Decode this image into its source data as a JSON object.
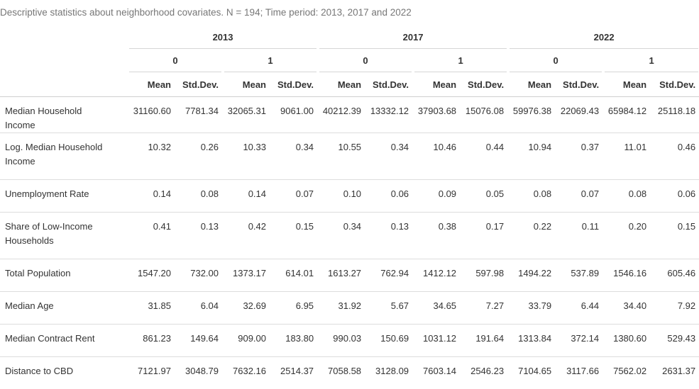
{
  "caption": "Descriptive statistics about neighborhood covariates. N = 194; Time period: 2013, 2017 and 2022",
  "years": [
    "2013",
    "2017",
    "2022"
  ],
  "groups": [
    "0",
    "1",
    "0",
    "1",
    "0",
    "1"
  ],
  "stats": [
    "Mean",
    "Std.Dev.",
    "Mean",
    "Std.Dev.",
    "Mean",
    "Std.Dev.",
    "Mean",
    "Std.Dev.",
    "Mean",
    "Std.Dev.",
    "Mean",
    "Std.Dev."
  ],
  "rows": [
    {
      "label": "Median Household Income",
      "values": [
        "31160.60",
        "7781.34",
        "32065.31",
        "9061.00",
        "40212.39",
        "13332.12",
        "37903.68",
        "15076.08",
        "59976.38",
        "22069.43",
        "65984.12",
        "25118.18"
      ]
    },
    {
      "label": "Log. Median Household Income",
      "values": [
        "10.32",
        "0.26",
        "10.33",
        "0.34",
        "10.55",
        "0.34",
        "10.46",
        "0.44",
        "10.94",
        "0.37",
        "11.01",
        "0.46"
      ]
    },
    {
      "label": "Unemployment Rate",
      "values": [
        "0.14",
        "0.08",
        "0.14",
        "0.07",
        "0.10",
        "0.06",
        "0.09",
        "0.05",
        "0.08",
        "0.07",
        "0.08",
        "0.06"
      ]
    },
    {
      "label": "Share of Low-Income Households",
      "values": [
        "0.41",
        "0.13",
        "0.42",
        "0.15",
        "0.34",
        "0.13",
        "0.38",
        "0.17",
        "0.22",
        "0.11",
        "0.20",
        "0.15"
      ]
    },
    {
      "label": "Total Population",
      "values": [
        "1547.20",
        "732.00",
        "1373.17",
        "614.01",
        "1613.27",
        "762.94",
        "1412.12",
        "597.98",
        "1494.22",
        "537.89",
        "1546.16",
        "605.46"
      ]
    },
    {
      "label": "Median Age",
      "values": [
        "31.85",
        "6.04",
        "32.69",
        "6.95",
        "31.92",
        "5.67",
        "34.65",
        "7.27",
        "33.79",
        "6.44",
        "34.40",
        "7.92"
      ]
    },
    {
      "label": "Median Contract Rent",
      "values": [
        "861.23",
        "149.64",
        "909.00",
        "183.80",
        "990.03",
        "150.69",
        "1031.12",
        "191.64",
        "1313.84",
        "372.14",
        "1380.60",
        "529.43"
      ]
    },
    {
      "label": "Distance to CBD",
      "values": [
        "7121.97",
        "3048.79",
        "7632.16",
        "2514.37",
        "7058.58",
        "3128.09",
        "7603.14",
        "2546.23",
        "7104.65",
        "3117.66",
        "7562.02",
        "2631.37"
      ]
    }
  ]
}
